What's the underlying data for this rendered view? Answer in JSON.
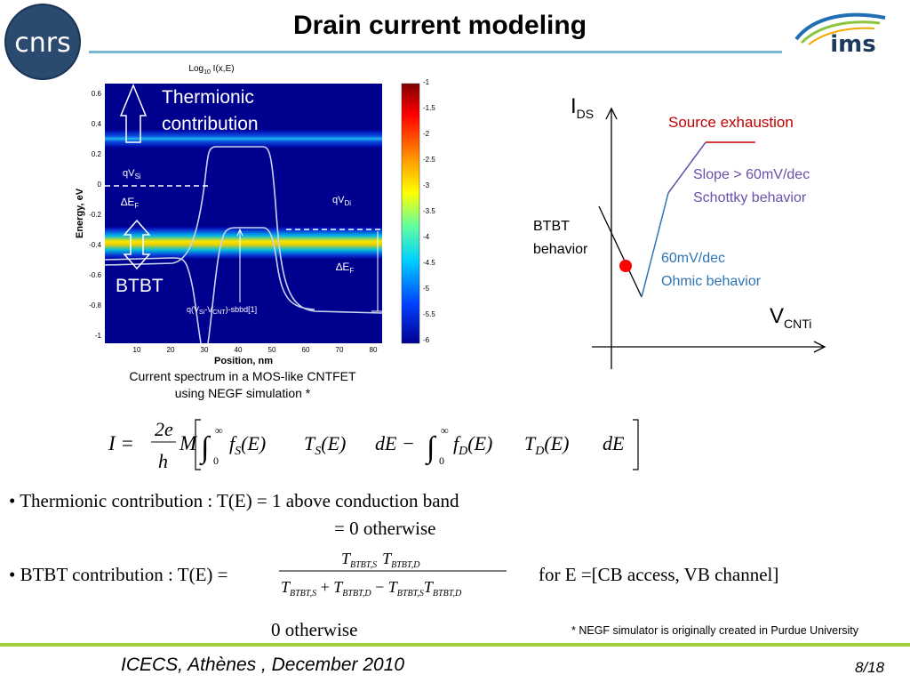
{
  "slide": {
    "title": "Drain current modeling",
    "footer_left": "ICECS, Athènes , December 2010",
    "footer_right": "8/18",
    "footnote": "* NEGF simulator is originally created in Purdue University"
  },
  "logos": {
    "left_text": "cnrs",
    "right_text": "ims"
  },
  "heatmap": {
    "title": "Log",
    "title_sub": "10",
    "title_rest": " I(x,E)",
    "ylabel": "Energy, eV",
    "xlabel": "Position, nm",
    "yticks": [
      "0.6",
      "0.4",
      "0.2",
      "0",
      "-0.2",
      "-0.4",
      "-0.6",
      "-0.8",
      "-1"
    ],
    "xticks": [
      "10",
      "20",
      "30",
      "40",
      "50",
      "60",
      "70",
      "80"
    ],
    "colorbar_ticks": [
      "-1",
      "-1.5",
      "-2",
      "-2.5",
      "-3",
      "-3.5",
      "-4",
      "-4.5",
      "-5",
      "-5.5",
      "-6"
    ],
    "labels": {
      "thermionic_1": "Thermionic",
      "thermionic_2": "contribution",
      "qvsi": "qV",
      "qvsi_sub": "Si",
      "ef_left": "∆E",
      "ef_left_sub": "F",
      "qvdi": "qV",
      "qvdi_sub": "Di",
      "ef_right": "∆E",
      "ef_right_sub": "F",
      "btbt": "BTBT",
      "formula": "q(V",
      "formula_sub1": "Si",
      "formula_mid": "-V",
      "formula_sub2": "CNT",
      "formula_end": ")-sbbd[1]"
    }
  },
  "caption": {
    "line1": "Current spectrum in a MOS-like CNTFET",
    "line2": "using NEGF simulation *"
  },
  "sketch": {
    "y_axis": "I",
    "y_axis_sub": "DS",
    "x_axis": "V",
    "x_axis_sub": "CNTi",
    "source_exhaustion": "Source exhaustion",
    "slope_1": "Slope > 60mV/dec",
    "slope_2": "Schottky behavior",
    "ohmic_1": "60mV/dec",
    "ohmic_2": "Ohmic behavior",
    "btbt_1": "BTBT",
    "btbt_2": "behavior",
    "colors": {
      "red": "#c00000",
      "purple": "#6a50a7",
      "blue": "#2e75b6"
    }
  },
  "equation": {
    "lhs": "I =",
    "frac_num": "2e",
    "frac_den": "h",
    "m": "M",
    "inf": "∞",
    "zero": "0",
    "fs": "f",
    "fs_sub": "S",
    "e_paren": "(E)",
    "ts": "T",
    "ts_sub": "S",
    "de": "dE −",
    "fd": "f",
    "fd_sub": "D",
    "td": "T",
    "td_sub": "D",
    "de_end": "dE"
  },
  "bullets": {
    "thermionic": "• Thermionic contribution : T(E) = 1 above conduction band",
    "thermionic_otherwise": "= 0 otherwise",
    "btbt_prefix": "• BTBT contribution : T(E) =",
    "btbt_num": "T",
    "btbt_sub_s": "BTBT,S",
    "btbt_sub_d": "BTBT,D",
    "btbt_range": "for E =[CB access, VB channel]",
    "btbt_otherwise": "0 otherwise"
  }
}
